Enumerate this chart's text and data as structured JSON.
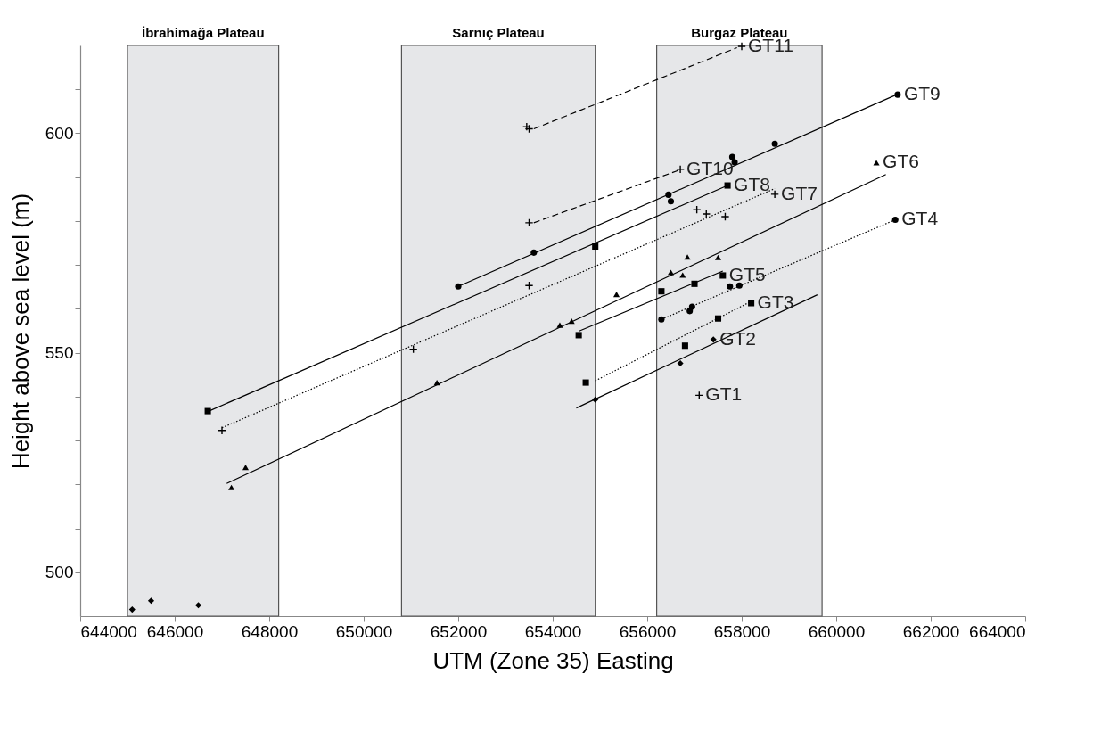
{
  "chart_data": {
    "type": "scatter",
    "xlabel": "UTM (Zone 35) Easting",
    "ylabel": "Height above sea level (m)",
    "xlim": [
      644000,
      664000
    ],
    "xticks": [
      644000,
      646000,
      648000,
      650000,
      652000,
      654000,
      656000,
      658000,
      660000,
      662000,
      664000
    ],
    "ylim": [
      490,
      620
    ],
    "yticks": [
      500,
      {
        "value": 510,
        "label": null
      },
      {
        "value": 520,
        "label": null
      },
      {
        "value": 530,
        "label": null
      },
      {
        "value": 540,
        "label": null
      },
      550,
      {
        "value": 560,
        "label": null
      },
      {
        "value": 570,
        "label": null
      },
      {
        "value": 580,
        "label": null
      },
      {
        "value": 590,
        "label": null
      },
      600,
      {
        "value": 610,
        "label": null
      }
    ],
    "grid": false,
    "bands": [
      {
        "axis": "x",
        "from": 645000,
        "to": 648200,
        "label": "İbrahimağa Plateau",
        "color": "#e6e7e9"
      },
      {
        "axis": "x",
        "from": 650800,
        "to": 654900,
        "label": "Sarnıç Plateau",
        "color": "#e6e7e9"
      },
      {
        "axis": "x",
        "from": 656200,
        "to": 659700,
        "label": "Burgaz Plateau",
        "color": "#e6e7e9"
      }
    ],
    "series": [
      {
        "name": "GT1",
        "marker": "cross",
        "color": "#000000",
        "x": [
          657100
        ],
        "values": [
          540.3
        ]
      },
      {
        "name": "GT2",
        "marker": "diamond",
        "color": "#000000",
        "x": [
          645100,
          645500,
          646500,
          654900,
          656700,
          657400
        ],
        "values": [
          491.5,
          493.5,
          492.5,
          539.3,
          547.6,
          553.0
        ]
      },
      {
        "name": "GT3",
        "marker": "square",
        "color": "#000000",
        "x": [
          654700,
          656800,
          657500,
          658200
        ],
        "values": [
          543.2,
          551.6,
          557.8,
          561.3
        ]
      },
      {
        "name": "GT4",
        "marker": "circle",
        "color": "#000000",
        "x": [
          656300,
          656900,
          656950,
          657750,
          657950,
          661250
        ],
        "values": [
          557.6,
          559.5,
          560.5,
          565.1,
          565.3,
          580.3
        ]
      },
      {
        "name": "GT5",
        "marker": "square",
        "color": "#000000",
        "x": [
          654550,
          656300,
          657000,
          657600
        ],
        "values": [
          554.0,
          564.0,
          565.7,
          567.6
        ]
      },
      {
        "name": "GT6",
        "marker": "triangle",
        "color": "#000000",
        "x": [
          647200,
          647500,
          651550,
          654150,
          654400,
          655350,
          656500,
          656750,
          656850,
          657500,
          660850
        ],
        "values": [
          519.3,
          523.9,
          543.2,
          556.3,
          557.2,
          563.3,
          568.3,
          567.7,
          571.8,
          571.7,
          593.3
        ]
      },
      {
        "name": "GT7",
        "marker": "cross",
        "color": "#000000",
        "x": [
          647000,
          651050,
          653500,
          657050,
          657250,
          657650,
          658700
        ],
        "values": [
          532.3,
          550.8,
          565.3,
          582.6,
          581.6,
          581.0,
          586.1
        ]
      },
      {
        "name": "GT8",
        "marker": "square",
        "color": "#000000",
        "x": [
          646700,
          654900,
          657700
        ],
        "values": [
          536.7,
          574.2,
          588.1
        ]
      },
      {
        "name": "GT9",
        "marker": "circle",
        "color": "#000000",
        "x": [
          652000,
          653600,
          656450,
          656500,
          657800,
          657850,
          658700,
          661300
        ],
        "values": [
          565.1,
          572.8,
          586.0,
          584.5,
          594.6,
          593.4,
          597.6,
          608.8
        ]
      },
      {
        "name": "GT10",
        "marker": "cross",
        "color": "#000000",
        "x": [
          653500,
          656700
        ],
        "values": [
          579.6,
          591.8
        ]
      },
      {
        "name": "GT11",
        "marker": "cross",
        "color": "#000000",
        "x": [
          653450,
          653500,
          658000
        ],
        "values": [
          601.5,
          601.0,
          619.8
        ]
      },
      {
        "type": "line",
        "line_style": "solid",
        "color": "#000000",
        "x": [
          654500,
          659600
        ],
        "values": [
          537.4,
          563.2
        ]
      },
      {
        "type": "line",
        "line_style": "dotted",
        "color": "#000000",
        "x": [
          654900,
          658200
        ],
        "values": [
          543.6,
          561.7
        ]
      },
      {
        "type": "line",
        "line_style": "dotted",
        "color": "#000000",
        "x": [
          656300,
          661250
        ],
        "values": [
          557.6,
          580.3
        ]
      },
      {
        "type": "line",
        "line_style": "solid",
        "color": "#000000",
        "x": [
          654550,
          657600
        ],
        "values": [
          554.9,
          568.6
        ]
      },
      {
        "type": "line",
        "line_style": "solid",
        "color": "#000000",
        "x": [
          647100,
          661050
        ],
        "values": [
          520.2,
          590.6
        ]
      },
      {
        "type": "line",
        "line_style": "dotted",
        "color": "#000000",
        "x": [
          647000,
          658700
        ],
        "values": [
          532.9,
          587.4
        ]
      },
      {
        "type": "line",
        "line_style": "solid",
        "color": "#000000",
        "x": [
          646700,
          657700
        ],
        "values": [
          536.6,
          588.1
        ]
      },
      {
        "type": "line",
        "line_style": "solid",
        "color": "#000000",
        "x": [
          652000,
          661300
        ],
        "values": [
          565.1,
          608.9
        ]
      },
      {
        "type": "line",
        "line_style": "dashed",
        "color": "#000000",
        "x": [
          653600,
          656700
        ],
        "values": [
          579.6,
          591.7
        ]
      },
      {
        "type": "line",
        "line_style": "dashed",
        "color": "#000000",
        "x": [
          653600,
          657900
        ],
        "values": [
          601.0,
          619.5
        ]
      }
    ]
  }
}
